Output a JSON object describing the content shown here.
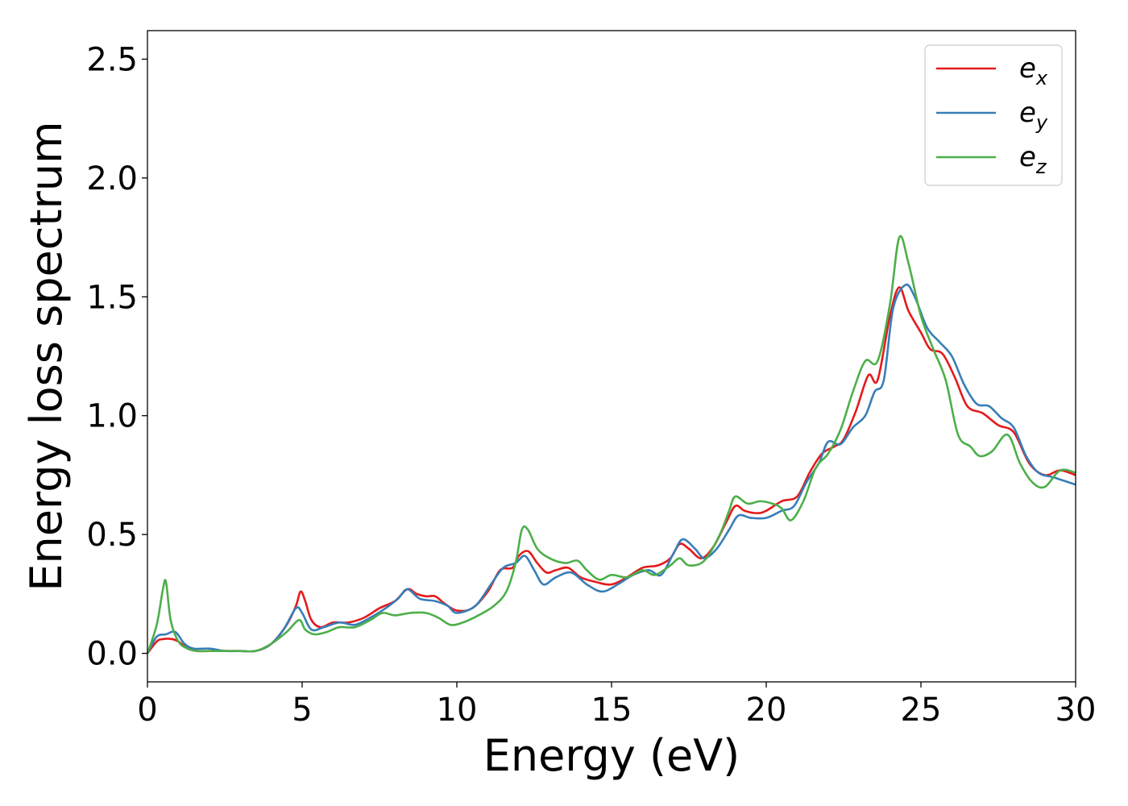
{
  "chart_data": {
    "type": "line",
    "xlabel": "Energy (eV)",
    "ylabel": "Energy loss spectrum",
    "xlim": [
      0,
      30
    ],
    "ylim": [
      -0.12,
      2.62
    ],
    "xticks": [
      0,
      5,
      10,
      15,
      20,
      25,
      30
    ],
    "xtick_labels": [
      "0",
      "5",
      "10",
      "15",
      "20",
      "25",
      "30"
    ],
    "yticks": [
      0.0,
      0.5,
      1.0,
      1.5,
      2.0,
      2.5
    ],
    "ytick_labels": [
      "0.0",
      "0.5",
      "1.0",
      "1.5",
      "2.0",
      "2.5"
    ],
    "grid": false,
    "legend_position": "top-right",
    "series": [
      {
        "name": "e",
        "subscript": "x",
        "color": "#e41a1c",
        "points": [
          [
            0,
            0
          ],
          [
            0.3,
            0.05
          ],
          [
            0.5,
            0.06
          ],
          [
            0.8,
            0.06
          ],
          [
            1.0,
            0.05
          ],
          [
            1.3,
            0.02
          ],
          [
            1.6,
            0.01
          ],
          [
            2,
            0.01
          ],
          [
            2.5,
            0.01
          ],
          [
            3,
            0.01
          ],
          [
            3.5,
            0.01
          ],
          [
            4,
            0.04
          ],
          [
            4.5,
            0.12
          ],
          [
            4.8,
            0.2
          ],
          [
            4.95,
            0.26
          ],
          [
            5.1,
            0.22
          ],
          [
            5.3,
            0.14
          ],
          [
            5.6,
            0.11
          ],
          [
            6,
            0.13
          ],
          [
            6.5,
            0.13
          ],
          [
            7,
            0.15
          ],
          [
            7.5,
            0.19
          ],
          [
            8,
            0.22
          ],
          [
            8.4,
            0.27
          ],
          [
            8.7,
            0.25
          ],
          [
            9,
            0.24
          ],
          [
            9.3,
            0.24
          ],
          [
            9.6,
            0.21
          ],
          [
            10,
            0.18
          ],
          [
            10.5,
            0.19
          ],
          [
            11,
            0.26
          ],
          [
            11.4,
            0.35
          ],
          [
            11.8,
            0.36
          ],
          [
            12.0,
            0.41
          ],
          [
            12.3,
            0.43
          ],
          [
            12.6,
            0.38
          ],
          [
            12.9,
            0.34
          ],
          [
            13.2,
            0.35
          ],
          [
            13.6,
            0.36
          ],
          [
            14,
            0.32
          ],
          [
            14.5,
            0.3
          ],
          [
            15,
            0.29
          ],
          [
            15.5,
            0.32
          ],
          [
            16,
            0.36
          ],
          [
            16.5,
            0.37
          ],
          [
            16.9,
            0.4
          ],
          [
            17.2,
            0.46
          ],
          [
            17.5,
            0.44
          ],
          [
            17.9,
            0.4
          ],
          [
            18.3,
            0.45
          ],
          [
            18.7,
            0.55
          ],
          [
            19,
            0.62
          ],
          [
            19.3,
            0.6
          ],
          [
            19.7,
            0.59
          ],
          [
            20,
            0.6
          ],
          [
            20.5,
            0.64
          ],
          [
            21,
            0.66
          ],
          [
            21.4,
            0.76
          ],
          [
            21.8,
            0.84
          ],
          [
            22.2,
            0.87
          ],
          [
            22.5,
            0.9
          ],
          [
            22.9,
            1.02
          ],
          [
            23.3,
            1.17
          ],
          [
            23.6,
            1.15
          ],
          [
            24.0,
            1.42
          ],
          [
            24.3,
            1.54
          ],
          [
            24.6,
            1.44
          ],
          [
            25,
            1.35
          ],
          [
            25.3,
            1.28
          ],
          [
            25.7,
            1.26
          ],
          [
            26.1,
            1.16
          ],
          [
            26.5,
            1.04
          ],
          [
            27,
            1.01
          ],
          [
            27.5,
            0.96
          ],
          [
            28,
            0.93
          ],
          [
            28.5,
            0.8
          ],
          [
            29,
            0.75
          ],
          [
            29.5,
            0.77
          ],
          [
            30,
            0.75
          ]
        ]
      },
      {
        "name": "e",
        "subscript": "y",
        "color": "#377eb8",
        "points": [
          [
            0,
            0
          ],
          [
            0.3,
            0.07
          ],
          [
            0.6,
            0.08
          ],
          [
            0.9,
            0.09
          ],
          [
            1.2,
            0.04
          ],
          [
            1.5,
            0.02
          ],
          [
            2,
            0.02
          ],
          [
            2.5,
            0.01
          ],
          [
            3,
            0.01
          ],
          [
            3.5,
            0.01
          ],
          [
            4,
            0.04
          ],
          [
            4.4,
            0.1
          ],
          [
            4.8,
            0.19
          ],
          [
            5.0,
            0.17
          ],
          [
            5.3,
            0.1
          ],
          [
            5.7,
            0.11
          ],
          [
            6.2,
            0.13
          ],
          [
            6.7,
            0.12
          ],
          [
            7.2,
            0.15
          ],
          [
            7.7,
            0.19
          ],
          [
            8.1,
            0.23
          ],
          [
            8.4,
            0.27
          ],
          [
            8.8,
            0.23
          ],
          [
            9.3,
            0.22
          ],
          [
            9.7,
            0.2
          ],
          [
            10,
            0.17
          ],
          [
            10.6,
            0.2
          ],
          [
            11.1,
            0.29
          ],
          [
            11.5,
            0.36
          ],
          [
            11.9,
            0.38
          ],
          [
            12.2,
            0.41
          ],
          [
            12.5,
            0.35
          ],
          [
            12.8,
            0.29
          ],
          [
            13.2,
            0.32
          ],
          [
            13.7,
            0.34
          ],
          [
            14.2,
            0.29
          ],
          [
            14.7,
            0.26
          ],
          [
            15.2,
            0.29
          ],
          [
            15.7,
            0.33
          ],
          [
            16.2,
            0.35
          ],
          [
            16.6,
            0.33
          ],
          [
            17.0,
            0.42
          ],
          [
            17.3,
            0.48
          ],
          [
            17.7,
            0.44
          ],
          [
            18,
            0.4
          ],
          [
            18.4,
            0.44
          ],
          [
            18.8,
            0.52
          ],
          [
            19.1,
            0.58
          ],
          [
            19.5,
            0.57
          ],
          [
            20,
            0.57
          ],
          [
            20.5,
            0.6
          ],
          [
            20.9,
            0.62
          ],
          [
            21.3,
            0.72
          ],
          [
            21.7,
            0.8
          ],
          [
            22,
            0.89
          ],
          [
            22.4,
            0.88
          ],
          [
            22.8,
            0.95
          ],
          [
            23.2,
            1.0
          ],
          [
            23.5,
            1.1
          ],
          [
            23.8,
            1.15
          ],
          [
            24.1,
            1.45
          ],
          [
            24.5,
            1.55
          ],
          [
            24.8,
            1.5
          ],
          [
            25.2,
            1.37
          ],
          [
            25.6,
            1.31
          ],
          [
            26,
            1.25
          ],
          [
            26.4,
            1.13
          ],
          [
            26.8,
            1.05
          ],
          [
            27.2,
            1.04
          ],
          [
            27.6,
            0.99
          ],
          [
            28,
            0.95
          ],
          [
            28.4,
            0.83
          ],
          [
            28.8,
            0.76
          ],
          [
            29.3,
            0.74
          ],
          [
            30,
            0.71
          ]
        ]
      },
      {
        "name": "e",
        "subscript": "z",
        "color": "#4daf4a",
        "points": [
          [
            0,
            0
          ],
          [
            0.3,
            0.12
          ],
          [
            0.5,
            0.27
          ],
          [
            0.6,
            0.3
          ],
          [
            0.75,
            0.14
          ],
          [
            1.0,
            0.05
          ],
          [
            1.3,
            0.02
          ],
          [
            1.6,
            0.01
          ],
          [
            2,
            0.01
          ],
          [
            2.5,
            0.01
          ],
          [
            3,
            0.01
          ],
          [
            3.5,
            0.01
          ],
          [
            4,
            0.04
          ],
          [
            4.5,
            0.09
          ],
          [
            4.9,
            0.14
          ],
          [
            5.1,
            0.1
          ],
          [
            5.4,
            0.08
          ],
          [
            5.8,
            0.09
          ],
          [
            6.2,
            0.11
          ],
          [
            6.7,
            0.11
          ],
          [
            7.2,
            0.14
          ],
          [
            7.6,
            0.17
          ],
          [
            8,
            0.16
          ],
          [
            8.5,
            0.17
          ],
          [
            9,
            0.17
          ],
          [
            9.4,
            0.15
          ],
          [
            9.8,
            0.12
          ],
          [
            10.2,
            0.13
          ],
          [
            10.7,
            0.16
          ],
          [
            11.2,
            0.2
          ],
          [
            11.6,
            0.26
          ],
          [
            11.9,
            0.38
          ],
          [
            12.1,
            0.52
          ],
          [
            12.3,
            0.52
          ],
          [
            12.6,
            0.44
          ],
          [
            13,
            0.4
          ],
          [
            13.5,
            0.38
          ],
          [
            13.9,
            0.39
          ],
          [
            14.2,
            0.35
          ],
          [
            14.6,
            0.31
          ],
          [
            15,
            0.33
          ],
          [
            15.5,
            0.32
          ],
          [
            16,
            0.35
          ],
          [
            16.4,
            0.33
          ],
          [
            16.9,
            0.37
          ],
          [
            17.2,
            0.4
          ],
          [
            17.5,
            0.37
          ],
          [
            18,
            0.39
          ],
          [
            18.5,
            0.5
          ],
          [
            18.8,
            0.6
          ],
          [
            19,
            0.66
          ],
          [
            19.4,
            0.63
          ],
          [
            19.8,
            0.64
          ],
          [
            20.2,
            0.63
          ],
          [
            20.5,
            0.61
          ],
          [
            20.8,
            0.56
          ],
          [
            21.2,
            0.64
          ],
          [
            21.6,
            0.78
          ],
          [
            22,
            0.84
          ],
          [
            22.4,
            0.94
          ],
          [
            22.8,
            1.1
          ],
          [
            23.2,
            1.23
          ],
          [
            23.6,
            1.23
          ],
          [
            24.0,
            1.47
          ],
          [
            24.3,
            1.75
          ],
          [
            24.6,
            1.64
          ],
          [
            25,
            1.42
          ],
          [
            25.4,
            1.28
          ],
          [
            25.8,
            1.15
          ],
          [
            26.2,
            0.92
          ],
          [
            26.6,
            0.87
          ],
          [
            26.9,
            0.83
          ],
          [
            27.3,
            0.85
          ],
          [
            27.8,
            0.92
          ],
          [
            28.2,
            0.8
          ],
          [
            28.6,
            0.72
          ],
          [
            29,
            0.7
          ],
          [
            29.5,
            0.77
          ],
          [
            30,
            0.76
          ]
        ]
      }
    ]
  }
}
